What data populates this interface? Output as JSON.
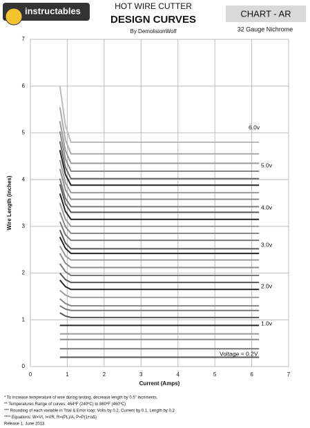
{
  "header": {
    "logo": "instructables",
    "chart_id": "CHART   - AR",
    "gauge": "32 Gauge Nichrome"
  },
  "chart_data": {
    "type": "line",
    "title": "HOT WIRE CUTTER",
    "subtitle": "DESIGN CURVES",
    "author": "By DemolisionWolf",
    "xlabel": "Current (Amps)",
    "ylabel": "Wire Length (inches)",
    "xlim": [
      0,
      7
    ],
    "xticks": [
      0,
      1,
      2,
      3,
      4,
      5,
      6,
      7
    ],
    "ylim": [
      0,
      7
    ],
    "yticks": [
      0,
      1,
      2,
      3,
      4,
      5,
      6,
      7
    ],
    "grid": true,
    "x": [
      0.8,
      0.95,
      1.1,
      6.2
    ],
    "series": [
      {
        "color": "#555555",
        "values": [
          0.2,
          0.2,
          0.2,
          0.2
        ]
      },
      {
        "color": "#777777",
        "values": [
          0.38,
          0.38,
          0.38,
          0.38
        ]
      },
      {
        "color": "#888888",
        "values": [
          0.58,
          0.58,
          0.58,
          0.58
        ]
      },
      {
        "color": "#999999",
        "values": [
          0.7,
          0.7,
          0.7,
          0.7
        ]
      },
      {
        "color": "#222222",
        "values": [
          0.88,
          0.88,
          0.88,
          0.88
        ]
      },
      {
        "color": "#555555",
        "values": [
          1.15,
          1.08,
          1.05,
          1.05
        ]
      },
      {
        "color": "#777777",
        "values": [
          1.3,
          1.23,
          1.2,
          1.2
        ]
      },
      {
        "color": "#888888",
        "values": [
          1.45,
          1.35,
          1.3,
          1.3
        ]
      },
      {
        "color": "#999999",
        "values": [
          1.63,
          1.53,
          1.48,
          1.48
        ]
      },
      {
        "color": "#222222",
        "values": [
          1.85,
          1.71,
          1.65,
          1.65
        ]
      },
      {
        "color": "#555555",
        "values": [
          2.0,
          1.86,
          1.8,
          1.8
        ]
      },
      {
        "color": "#777777",
        "values": [
          2.2,
          2.03,
          1.95,
          1.95
        ]
      },
      {
        "color": "#888888",
        "values": [
          2.42,
          2.21,
          2.12,
          2.12
        ]
      },
      {
        "color": "#999999",
        "values": [
          2.58,
          2.37,
          2.28,
          2.28
        ]
      },
      {
        "color": "#222222",
        "values": [
          2.77,
          2.53,
          2.42,
          2.42
        ]
      },
      {
        "color": "#555555",
        "values": [
          2.92,
          2.64,
          2.52,
          2.52
        ]
      },
      {
        "color": "#777777",
        "values": [
          3.1,
          2.82,
          2.7,
          2.7
        ]
      },
      {
        "color": "#888888",
        "values": [
          3.3,
          2.99,
          2.85,
          2.85
        ]
      },
      {
        "color": "#999999",
        "values": [
          3.5,
          3.15,
          3.0,
          3.0
        ]
      },
      {
        "color": "#222222",
        "values": [
          3.7,
          3.32,
          3.15,
          3.15
        ]
      },
      {
        "color": "#555555",
        "values": [
          3.9,
          3.48,
          3.3,
          3.3
        ]
      },
      {
        "color": "#777777",
        "values": [
          4.02,
          3.6,
          3.42,
          3.42
        ]
      },
      {
        "color": "#888888",
        "values": [
          4.23,
          3.78,
          3.58,
          3.58
        ]
      },
      {
        "color": "#999999",
        "values": [
          4.42,
          3.93,
          3.72,
          3.72
        ]
      },
      {
        "color": "#222222",
        "values": [
          4.63,
          4.11,
          3.88,
          3.88
        ]
      },
      {
        "color": "#666666",
        "values": [
          4.82,
          4.26,
          4.02,
          4.02
        ]
      },
      {
        "color": "#888888",
        "values": [
          5.03,
          4.44,
          4.18,
          4.18
        ]
      },
      {
        "color": "#999999",
        "values": [
          5.25,
          4.62,
          4.35,
          4.35
        ]
      },
      {
        "color": "#aaaaaa",
        "values": [
          5.55,
          4.85,
          4.55,
          4.55
        ]
      },
      {
        "color": "#bbbbbb",
        "values": [
          6.0,
          5.16,
          4.8,
          4.8
        ]
      }
    ],
    "annotations": [
      "6.0v",
      "5.0v",
      "4.0v",
      "3.0v",
      "2.0v",
      "1.0v",
      "Voltage = 0.2V"
    ]
  },
  "footnotes": [
    "*      To increase temperature of wire during testing, decrease length by 0.5\" incriments.",
    "**     Temperatures Range of curves: 464ºF (240ºC) to 860ºF (460ºC)",
    "***    Rounding of each variable in Trial & Error loop: Volts by 0.2, Current by 0.1, Length by 0.2",
    "****  Equations: W=VI, I=VR, R=(PL)/A, P=P(1+αΔ)",
    "Release 1, June 2013."
  ]
}
